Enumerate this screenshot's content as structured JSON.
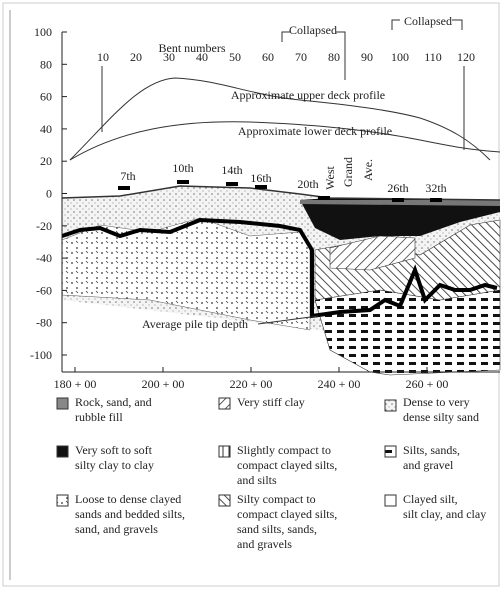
{
  "y_axis": {
    "labels": [
      "100",
      "80",
      "60",
      "40",
      "20",
      "0",
      "-20",
      "-40",
      "-60",
      "-80",
      "-100"
    ]
  },
  "x_axis": {
    "labels": [
      "180 + 00",
      "200 + 00",
      "220 + 00",
      "240 + 00",
      "260 + 00"
    ]
  },
  "bent_numbers": {
    "title": "Bent numbers",
    "labels": [
      "10",
      "20",
      "30",
      "40",
      "50",
      "60",
      "70",
      "80",
      "90",
      "100",
      "110",
      "120"
    ]
  },
  "collapsed": [
    "Collapsed",
    "Collapsed"
  ],
  "upper_deck": "Approximate upper deck profile",
  "lower_deck": "Approximate lower deck profile",
  "streets": [
    "7th",
    "10th",
    "14th",
    "16th",
    "20th",
    "West",
    "Grand",
    "Ave.",
    "26th",
    "32th"
  ],
  "pile_tip_label": "Average pile tip depth",
  "legend": [
    {
      "lines": [
        "Rock, sand, and",
        "rubble fill"
      ]
    },
    {
      "lines": [
        "Very stiff clay"
      ]
    },
    {
      "lines": [
        "Dense to very",
        "dense silty sand"
      ]
    },
    {
      "lines": [
        "Very soft to soft",
        "silty clay to clay"
      ]
    },
    {
      "lines": [
        "Slightly compact to",
        "compact clayed silts,",
        "and silts"
      ]
    },
    {
      "lines": [
        "Silts, sands,",
        "and gravel"
      ]
    },
    {
      "lines": [
        "Loose to dense clayed",
        "sands and bedded silts,",
        "sand, and gravels"
      ]
    },
    {
      "lines": [
        "Silty compact to",
        "compact clayed silts,",
        "sand silts, sands,",
        "and gravels"
      ]
    },
    {
      "lines": [
        "Clayed silt,",
        "silt clay, and clay"
      ]
    }
  ]
}
